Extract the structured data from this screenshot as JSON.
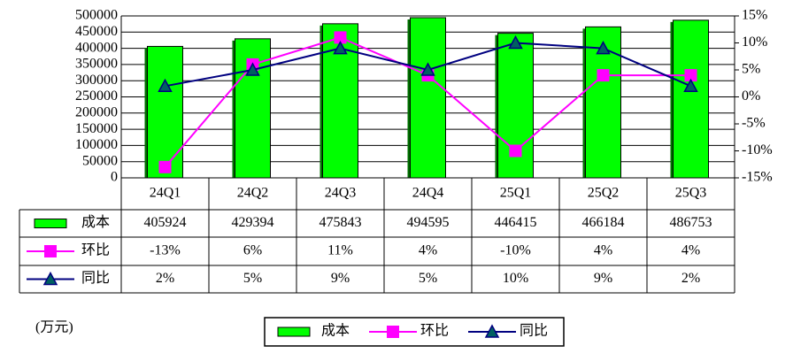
{
  "chart_data": {
    "type": "bar",
    "categories": [
      "24Q1",
      "24Q2",
      "24Q3",
      "24Q4",
      "25Q1",
      "25Q2",
      "25Q3"
    ],
    "series": [
      {
        "name": "成本",
        "type": "bar",
        "color": "#00ff00",
        "values": [
          405924,
          429394,
          475843,
          494595,
          446415,
          466184,
          486753
        ]
      },
      {
        "name": "环比",
        "type": "line",
        "axis": "y2",
        "marker": "square",
        "color": "#ff00ff",
        "values": [
          -13,
          6,
          11,
          4,
          -10,
          4,
          4
        ],
        "value_labels": [
          "-13%",
          "6%",
          "11%",
          "4%",
          "-10%",
          "4%",
          "4%"
        ]
      },
      {
        "name": "同比",
        "type": "line",
        "axis": "y2",
        "marker": "triangle",
        "color": "#000080",
        "values": [
          2,
          5,
          9,
          5,
          10,
          9,
          2
        ],
        "value_labels": [
          "2%",
          "5%",
          "9%",
          "5%",
          "10%",
          "9%",
          "2%"
        ]
      }
    ],
    "ylim": [
      0,
      500000
    ],
    "yticks": [
      0,
      50000,
      100000,
      150000,
      200000,
      250000,
      300000,
      350000,
      400000,
      450000,
      500000
    ],
    "y2lim": [
      -15,
      15
    ],
    "y2ticks": [
      {
        "value": 15,
        "label": "15%"
      },
      {
        "value": 10,
        "label": "10%"
      },
      {
        "value": 5,
        "label": "5%"
      },
      {
        "value": 0,
        "label": "0%"
      },
      {
        "value": -5,
        "label": "-5%"
      },
      {
        "value": -10,
        "label": "-10%"
      },
      {
        "value": -15,
        "label": "-15%"
      }
    ],
    "grid": true,
    "ylabel": "(万元)"
  }
}
